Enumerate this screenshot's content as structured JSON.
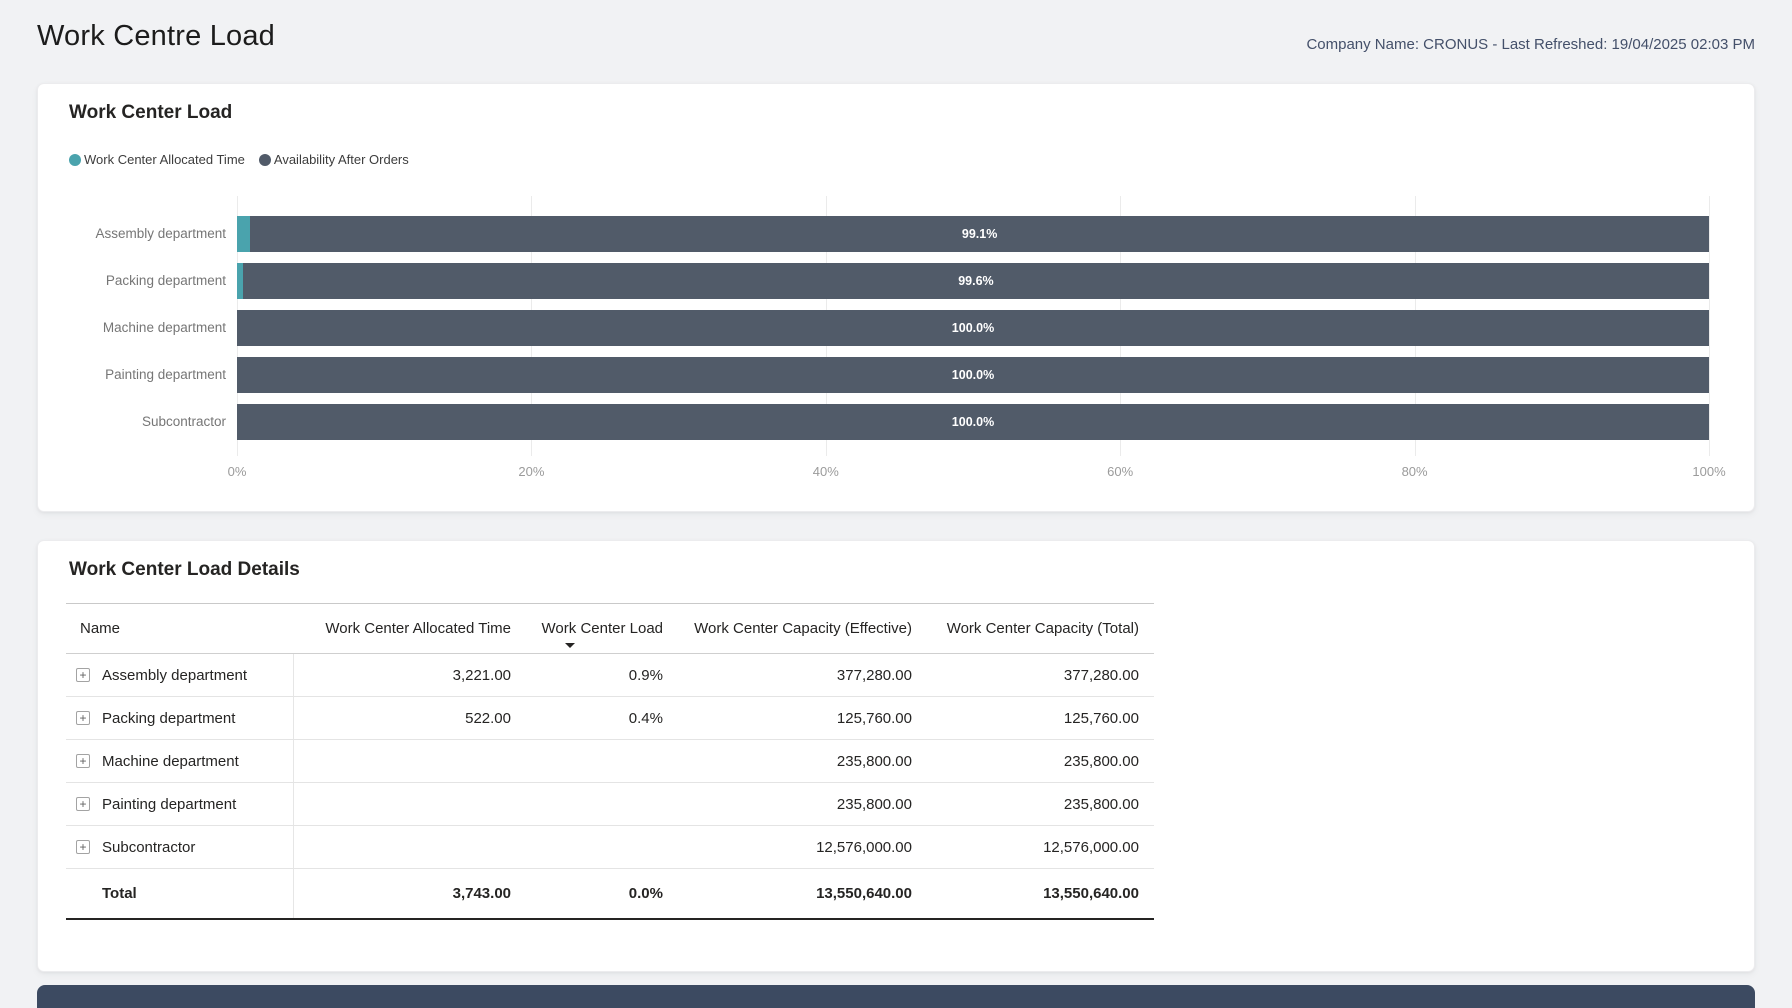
{
  "page": {
    "title": "Work Centre Load",
    "company_info": "Company Name: CRONUS - Last Refreshed: 19/04/2025 02:03 PM"
  },
  "colors": {
    "allocated_time": "#4aa3ad",
    "availability_after_orders": "#515b69",
    "bottom_strip": "#3c4a61",
    "bar_label_text": "#ffffff"
  },
  "chart_card": {
    "title": "Work Center Load"
  },
  "chart_data": {
    "type": "bar",
    "orientation": "horizontal",
    "stacked": true,
    "title": "Work Center Load",
    "categories": [
      "Assembly department",
      "Packing department",
      "Machine department",
      "Painting department",
      "Subcontractor"
    ],
    "series": [
      {
        "name": "Work Center Allocated Time",
        "color": "#4aa3ad",
        "values": [
          0.9,
          0.4,
          0.0,
          0.0,
          0.0
        ]
      },
      {
        "name": "Availability After Orders",
        "color": "#515b69",
        "values": [
          99.1,
          99.6,
          100.0,
          100.0,
          100.0
        ]
      }
    ],
    "bar_labels": [
      "99.1%",
      "99.6%",
      "100.0%",
      "100.0%",
      "100.0%"
    ],
    "x_ticks": [
      "0%",
      "20%",
      "40%",
      "60%",
      "80%",
      "100%"
    ],
    "xlim": [
      0,
      100
    ],
    "grid": "vertical",
    "legend_position": "top-left"
  },
  "details_card": {
    "title": "Work Center Load Details",
    "columns": {
      "name": "Name",
      "allocated_time": "Work Center Allocated Time",
      "load": "Work Center Load",
      "capacity_effective": "Work Center Capacity (Effective)",
      "capacity_total": "Work Center Capacity (Total)"
    },
    "sort": {
      "column": "Work Center Load",
      "direction": "descending"
    },
    "rows": [
      {
        "name": "Assembly department",
        "allocated_time": "3,221.00",
        "load": "0.9%",
        "capacity_effective": "377,280.00",
        "capacity_total": "377,280.00"
      },
      {
        "name": "Packing department",
        "allocated_time": "522.00",
        "load": "0.4%",
        "capacity_effective": "125,760.00",
        "capacity_total": "125,760.00"
      },
      {
        "name": "Machine department",
        "allocated_time": "",
        "load": "",
        "capacity_effective": "235,800.00",
        "capacity_total": "235,800.00"
      },
      {
        "name": "Painting department",
        "allocated_time": "",
        "load": "",
        "capacity_effective": "235,800.00",
        "capacity_total": "235,800.00"
      },
      {
        "name": "Subcontractor",
        "allocated_time": "",
        "load": "",
        "capacity_effective": "12,576,000.00",
        "capacity_total": "12,576,000.00"
      }
    ],
    "total_row": {
      "name": "Total",
      "allocated_time": "3,743.00",
      "load": "0.0%",
      "capacity_effective": "13,550,640.00",
      "capacity_total": "13,550,640.00"
    }
  }
}
